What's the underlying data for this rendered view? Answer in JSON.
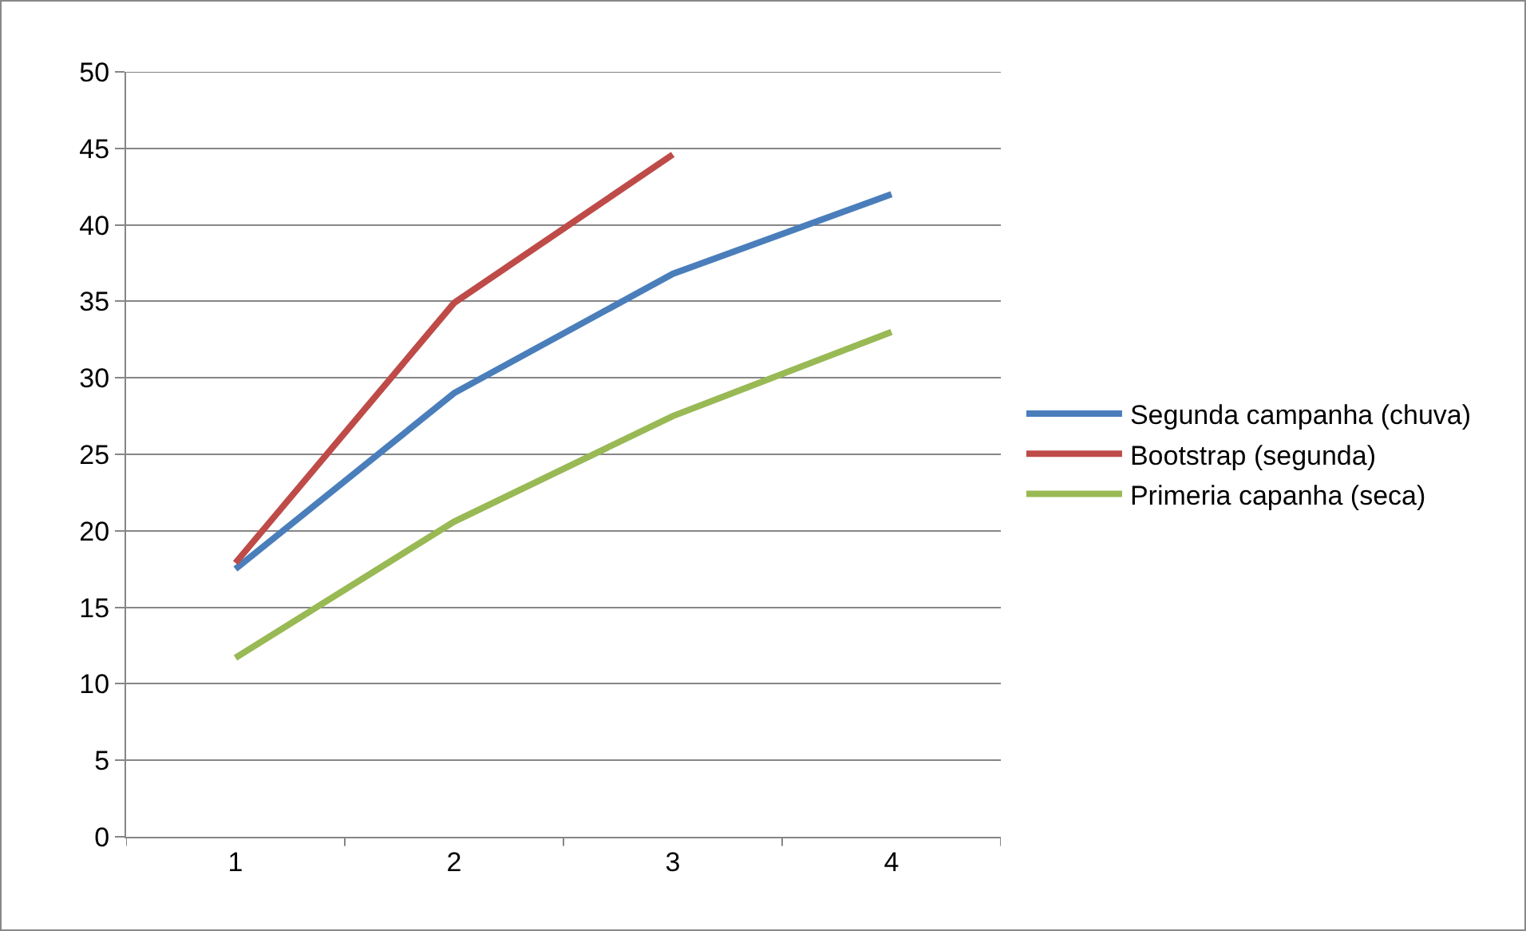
{
  "chart_data": {
    "type": "line",
    "categories": [
      "1",
      "2",
      "3",
      "4"
    ],
    "series": [
      {
        "name": "Segunda campanha (chuva)",
        "color": "#4a7ebb",
        "values": [
          17.5,
          29,
          36.8,
          42
        ]
      },
      {
        "name": "Bootstrap (segunda)",
        "color": "#be4b48",
        "values": [
          17.9,
          34.9,
          44.6,
          null
        ]
      },
      {
        "name": "Primeria capanha (seca)",
        "color": "#98b954",
        "values": [
          11.7,
          20.6,
          27.5,
          33
        ]
      }
    ],
    "ylim": [
      0,
      50
    ],
    "yticks": [
      0,
      5,
      10,
      15,
      20,
      25,
      30,
      35,
      40,
      45,
      50
    ],
    "grid": "y",
    "legend": "right"
  }
}
